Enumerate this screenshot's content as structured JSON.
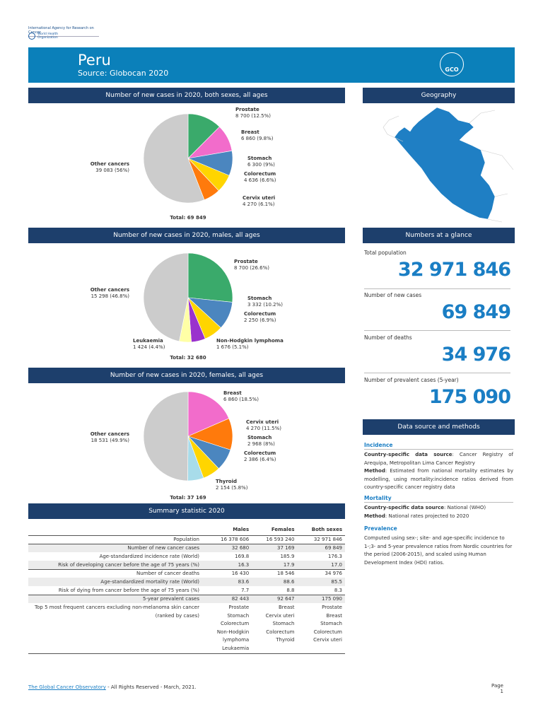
{
  "header": {
    "iarc": "International Agency for Research on Cancer",
    "who": "World Health Organization",
    "title": "Peru",
    "source": "Source: Globocan 2020",
    "gco": "GCO"
  },
  "sections": {
    "both": "Number of new cases in 2020, both sexes, all ages",
    "males": "Number of new cases in 2020, males, all ages",
    "females": "Number of new cases in 2020, females, all ages",
    "summary": "Summary statistic 2020",
    "geography": "Geography",
    "glance": "Numbers at a glance",
    "datasource": "Data source and methods"
  },
  "chart_data": [
    {
      "type": "pie",
      "total": "Total: 69 849",
      "slices": [
        {
          "name": "Prostate",
          "value": 8700,
          "label": "8 700 (12.5%)",
          "color": "#3aaa6b"
        },
        {
          "name": "Breast",
          "value": 6860,
          "label": "6 860 (9.8%)",
          "color": "#f26ccb"
        },
        {
          "name": "Stomach",
          "value": 6300,
          "label": "6 300 (9%)",
          "color": "#4b86bf"
        },
        {
          "name": "Colorectum",
          "value": 4636,
          "label": "4 636 (6.6%)",
          "color": "#ffd500"
        },
        {
          "name": "Cervix uteri",
          "value": 4270,
          "label": "4 270 (6.1%)",
          "color": "#ff7a0c"
        },
        {
          "name": "Other cancers",
          "value": 39083,
          "label": "39 083 (56%)",
          "color": "#cccccc"
        }
      ]
    },
    {
      "type": "pie",
      "total": "Total: 32 680",
      "slices": [
        {
          "name": "Prostate",
          "value": 8700,
          "label": "8 700 (26.6%)",
          "color": "#3aaa6b"
        },
        {
          "name": "Stomach",
          "value": 3332,
          "label": "3 332 (10.2%)",
          "color": "#4b86bf"
        },
        {
          "name": "Colorectum",
          "value": 2250,
          "label": "2 250 (6.9%)",
          "color": "#ffd500"
        },
        {
          "name": "Non-Hodgkin lymphoma",
          "value": 1676,
          "label": "1 676 (5.1%)",
          "color": "#9a32cd"
        },
        {
          "name": "Leukaemia",
          "value": 1424,
          "label": "1 424 (4.4%)",
          "color": "#ffffa6"
        },
        {
          "name": "Other cancers",
          "value": 15298,
          "label": "15 298 (46.8%)",
          "color": "#cccccc"
        }
      ]
    },
    {
      "type": "pie",
      "total": "Total: 37 169",
      "slices": [
        {
          "name": "Breast",
          "value": 6860,
          "label": "6 860 (18.5%)",
          "color": "#f26ccb"
        },
        {
          "name": "Cervix uteri",
          "value": 4270,
          "label": "4 270 (11.5%)",
          "color": "#ff7a0c"
        },
        {
          "name": "Stomach",
          "value": 2968,
          "label": "2 968 (8%)",
          "color": "#4b86bf"
        },
        {
          "name": "Colorectum",
          "value": 2386,
          "label": "2 386 (6.4%)",
          "color": "#ffd500"
        },
        {
          "name": "Thyroid",
          "value": 2154,
          "label": "2 154 (5.8%)",
          "color": "#a8dcea"
        },
        {
          "name": "Other cancers",
          "value": 18531,
          "label": "18 531 (49.9%)",
          "color": "#cccccc"
        }
      ]
    }
  ],
  "glance": [
    {
      "label": "Total population",
      "value": "32 971 846"
    },
    {
      "label": "Number of new cases",
      "value": "69 849"
    },
    {
      "label": "Number of deaths",
      "value": "34 976"
    },
    {
      "label": "Number of prevalent cases (5-year)",
      "value": "175 090"
    }
  ],
  "datasource": {
    "incidence": {
      "title": "Incidence",
      "src_label": "Country-specific data source",
      "src": ": Cancer Registry of Arequipa, Metropolitan Lima Cancer Registry",
      "method_label": "Method",
      "method": ": Estimated from national mortality estimates by modelling, using mortality:incidence ratios derived from country-specific cancer registry data"
    },
    "mortality": {
      "title": "Mortality",
      "src_label": "Country-specific data source",
      "src": ": National (WHO)",
      "method_label": "Method",
      "method": ": National rates projected to 2020"
    },
    "prevalence": {
      "title": "Prevalence",
      "text": "Computed using sex-; site- and age-specific incidence to 1-;3- and 5-year prevalence ratios from Nordic countries for the period (2006-2015), and scaled using Human Development Index (HDI) ratios."
    }
  },
  "summary": {
    "columns": [
      "",
      "Males",
      "Females",
      "Both sexes"
    ],
    "rows": [
      [
        "Population",
        "16 378 606",
        "16 593 240",
        "32 971 846"
      ],
      [
        "Number of new cancer cases",
        "32 680",
        "37 169",
        "69 849"
      ],
      [
        "Age-standardized incidence rate (World)",
        "169.8",
        "185.9",
        "176.3"
      ],
      [
        "Risk of developing cancer before the age of 75 years (%)",
        "16.3",
        "17.9",
        "17.0"
      ],
      [
        "Number of cancer deaths",
        "16 430",
        "18 546",
        "34 976"
      ],
      [
        "Age-standardized mortality rate (World)",
        "83.6",
        "88.6",
        "85.5"
      ],
      [
        "Risk of dying from cancer before the age of 75 years (%)",
        "7.7",
        "8.8",
        "8.3"
      ],
      [
        "5-year prevalent cases",
        "82 443",
        "92 647",
        "175 090"
      ]
    ],
    "top5": {
      "label": "Top 5 most frequent cancers excluding non-melanoma skin cancer (ranked by cases)",
      "males": "Prostate\nStomach\nColorectum\nNon-Hodgkin lymphoma\nLeukaemia",
      "females": "Breast\nCervix uteri\nStomach\nColorectum\nThyroid",
      "both": "Prostate\nBreast\nStomach\nColorectum\nCervix uteri"
    }
  },
  "footer": {
    "link": "The Global Cancer Observatory",
    "text": " - All Rights Reserved - March, 2021.",
    "page": "Page 1"
  }
}
